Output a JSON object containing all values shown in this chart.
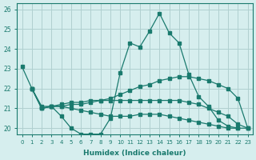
{
  "xlabel": "Humidex (Indice chaleur)",
  "background_color": "#d6eeee",
  "grid_color": "#b0d0d0",
  "line_color": "#1a7a6e",
  "xlim": [
    -0.5,
    23.5
  ],
  "ylim": [
    19.7,
    26.3
  ],
  "yticks": [
    20,
    21,
    22,
    23,
    24,
    25,
    26
  ],
  "xticks": [
    0,
    1,
    2,
    3,
    4,
    5,
    6,
    7,
    8,
    9,
    10,
    11,
    12,
    13,
    14,
    15,
    16,
    17,
    18,
    19,
    20,
    21,
    22,
    23
  ],
  "series": [
    {
      "x": [
        0,
        1,
        2,
        3,
        4,
        5,
        6,
        7,
        8,
        9,
        10,
        11,
        12,
        13,
        14,
        15,
        16,
        17,
        18,
        19,
        20,
        21,
        22
      ],
      "y": [
        23.1,
        22.0,
        21.1,
        21.1,
        20.6,
        20.0,
        19.7,
        19.7,
        19.7,
        20.5,
        22.8,
        24.3,
        24.1,
        24.9,
        25.8,
        24.8,
        24.3,
        22.7,
        21.6,
        21.1,
        20.4,
        20.1,
        20.0
      ]
    },
    {
      "x": [
        1,
        2,
        3,
        4,
        5,
        6,
        7,
        8,
        9,
        10,
        11,
        12,
        13,
        14,
        15,
        16,
        17,
        18,
        19,
        20,
        21,
        22,
        23
      ],
      "y": [
        22.0,
        21.0,
        21.1,
        21.1,
        21.2,
        21.2,
        21.3,
        21.4,
        21.5,
        21.7,
        21.9,
        22.1,
        22.2,
        22.4,
        22.5,
        22.6,
        22.6,
        22.5,
        22.4,
        22.2,
        22.0,
        21.5,
        20.0
      ]
    },
    {
      "x": [
        1,
        2,
        3,
        4,
        5,
        6,
        7,
        8,
        9,
        10,
        11,
        12,
        13,
        14,
        15,
        16,
        17,
        18,
        19,
        20,
        21,
        22,
        23
      ],
      "y": [
        22.0,
        21.0,
        21.1,
        21.2,
        21.3,
        21.3,
        21.4,
        21.4,
        21.4,
        21.4,
        21.4,
        21.4,
        21.4,
        21.4,
        21.4,
        21.4,
        21.3,
        21.2,
        21.0,
        20.8,
        20.6,
        20.2,
        20.0
      ]
    },
    {
      "x": [
        1,
        2,
        3,
        4,
        5,
        6,
        7,
        8,
        9,
        10,
        11,
        12,
        13,
        14,
        15,
        16,
        17,
        18,
        19,
        20,
        21,
        22,
        23
      ],
      "y": [
        22.0,
        21.0,
        21.1,
        21.1,
        21.0,
        20.9,
        20.8,
        20.7,
        20.6,
        20.6,
        20.6,
        20.7,
        20.7,
        20.7,
        20.6,
        20.5,
        20.4,
        20.3,
        20.2,
        20.1,
        20.0,
        20.0,
        20.0
      ]
    }
  ]
}
